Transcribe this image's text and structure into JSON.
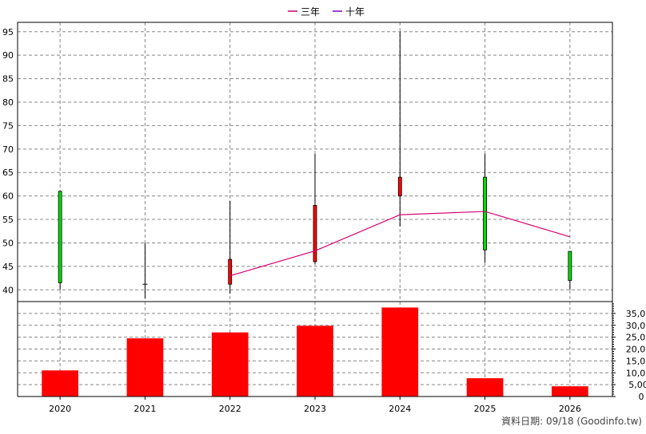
{
  "legend": {
    "items": [
      {
        "label": "三年",
        "color": "#d6006e"
      },
      {
        "label": "十年",
        "color": "#7a00c8"
      }
    ]
  },
  "source_note": "資料日期: 09/18 (Goodinfo.tw)",
  "colors": {
    "up_candle": "#ff0000",
    "down_candle": "#00dd00",
    "volume_bar": "#ff0000",
    "wick": "#000000",
    "grid": "#888888"
  },
  "chart_data": [
    {
      "type": "candlestick",
      "title": "",
      "categories": [
        "2020",
        "2021",
        "2022",
        "2023",
        "2024",
        "2025",
        "2026"
      ],
      "ohlc": [
        {
          "year": "2020",
          "open": 61,
          "high": 61,
          "low": 40,
          "close": 41.5
        },
        {
          "year": "2021",
          "open": 41.2,
          "high": 50,
          "low": 38.2,
          "close": 41.2
        },
        {
          "year": "2022",
          "open": 41.2,
          "high": 59,
          "low": 39.2,
          "close": 46.5
        },
        {
          "year": "2023",
          "open": 46,
          "high": 69,
          "low": 45.5,
          "close": 58
        },
        {
          "year": "2024",
          "open": 60,
          "high": 95,
          "low": 53.5,
          "close": 64
        },
        {
          "year": "2025",
          "open": 64,
          "high": 69,
          "low": 45.8,
          "close": 48.5
        },
        {
          "year": "2026",
          "open": 48.2,
          "high": 48.2,
          "low": 40,
          "close": 42
        }
      ],
      "series": [
        {
          "name": "三年",
          "x": [
            "2022",
            "2023",
            "2024",
            "2025",
            "2026"
          ],
          "values": [
            43,
            48.3,
            56,
            56.7,
            51.3
          ]
        }
      ],
      "ylim": [
        37.5,
        97
      ],
      "yticks": [
        40,
        45,
        50,
        55,
        60,
        65,
        70,
        75,
        80,
        85,
        90,
        95
      ],
      "grid": true,
      "legend_position": "top-center"
    },
    {
      "type": "bar",
      "title": "",
      "categories": [
        "2020",
        "2021",
        "2022",
        "2023",
        "2024",
        "2025",
        "2026"
      ],
      "values": [
        11000,
        24500,
        27000,
        29800,
        37500,
        7700,
        4300
      ],
      "ylim": [
        0,
        40000
      ],
      "yticks": [
        0,
        5000,
        10000,
        15000,
        20000,
        25000,
        30000,
        35000
      ],
      "ytick_labels": [
        "0",
        "5,000",
        "10,000",
        "15,000",
        "20,000",
        "25,000",
        "30,000",
        "35,000"
      ],
      "grid": true
    }
  ]
}
